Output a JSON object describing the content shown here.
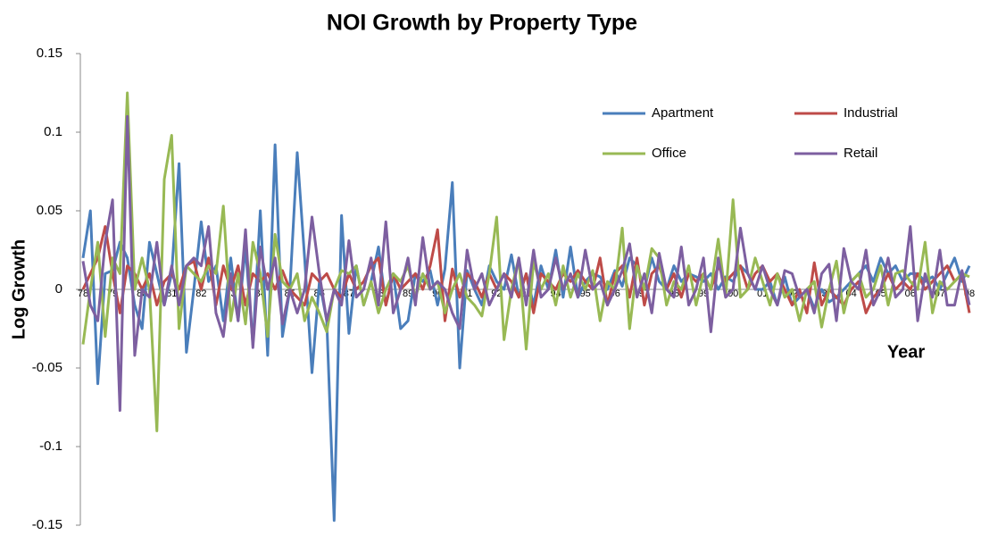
{
  "chart_data": {
    "type": "line",
    "title": "NOI Growth by Property Type",
    "ylabel": "Log Growth",
    "xlabel": "Year",
    "categories": [
      "78",
      null,
      null,
      null,
      "79",
      null,
      null,
      null,
      "80",
      null,
      null,
      null,
      "81",
      null,
      null,
      null,
      "82",
      null,
      null,
      null,
      "83",
      null,
      null,
      null,
      "84",
      null,
      null,
      null,
      "85",
      null,
      null,
      null,
      "86",
      null,
      null,
      null,
      "87",
      null,
      null,
      null,
      "88",
      null,
      null,
      null,
      "89",
      null,
      null,
      null,
      "90",
      null,
      null,
      null,
      "91",
      null,
      null,
      null,
      "92",
      null,
      null,
      null,
      "93",
      null,
      null,
      null,
      "94",
      null,
      null,
      null,
      "95",
      null,
      null,
      null,
      "96",
      null,
      null,
      null,
      "97",
      null,
      null,
      null,
      "98",
      null,
      null,
      null,
      "99",
      null,
      null,
      null,
      "00",
      null,
      null,
      null,
      "01",
      null,
      null,
      null,
      "02",
      null,
      null,
      null,
      "03",
      null,
      null,
      null,
      "04",
      null,
      null,
      null,
      "05",
      null,
      null,
      null,
      "06",
      null,
      null,
      null,
      "07",
      null,
      null,
      null,
      "08"
    ],
    "ylim": [
      -0.15,
      0.15
    ],
    "yticks": [
      0.15,
      0.1,
      0.05,
      0,
      -0.05,
      -0.1,
      -0.15
    ],
    "grid": false,
    "legend": "upper right",
    "series": [
      {
        "name": "Apartment",
        "color": "#4a7ebb",
        "values": [
          0.02,
          0.05,
          -0.06,
          0.01,
          0.012,
          0.03,
          0.02,
          -0.01,
          -0.025,
          0.03,
          0.01,
          -0.01,
          0.01,
          0.08,
          -0.04,
          0.0,
          0.043,
          0.005,
          0.015,
          -0.02,
          0.02,
          -0.02,
          0.027,
          -0.035,
          0.05,
          -0.042,
          0.092,
          -0.03,
          0.0,
          0.087,
          0.02,
          -0.053,
          0.005,
          -0.02,
          -0.147,
          0.047,
          -0.028,
          0.015,
          -0.01,
          0.005,
          0.027,
          -0.01,
          0.01,
          -0.025,
          -0.02,
          0.01,
          0.005,
          0.012,
          -0.01,
          0.013,
          0.068,
          -0.05,
          0.012,
          0.0,
          -0.01,
          0.015,
          0.005,
          0.0,
          0.022,
          -0.005,
          0.01,
          -0.01,
          0.015,
          0.0,
          0.025,
          -0.005,
          0.027,
          -0.005,
          0.005,
          0.01,
          0.008,
          0.0,
          0.012,
          0.002,
          0.02,
          0.015,
          0.0,
          0.02,
          0.005,
          0.0,
          0.015,
          0.005,
          0.01,
          0.008,
          0.005,
          0.01,
          0.0,
          0.008,
          0.005,
          0.015,
          0.01,
          0.0,
          0.0,
          0.005,
          -0.01,
          0.008,
          -0.01,
          -0.005,
          0.0,
          -0.012,
          0.0,
          -0.008,
          -0.005,
          0.0,
          0.005,
          0.01,
          0.015,
          0.005,
          0.02,
          0.01,
          0.015,
          0.005,
          0.01,
          0.01,
          0.005,
          0.008,
          0.0,
          0.01,
          0.02,
          0.005,
          0.015
        ]
      },
      {
        "name": "Industrial",
        "color": "#be4b48",
        "values": [
          0.0,
          0.01,
          0.02,
          0.04,
          0.01,
          -0.015,
          0.015,
          0.01,
          0.0,
          0.01,
          -0.01,
          0.005,
          0.01,
          0.0,
          0.015,
          0.018,
          0.0,
          0.02,
          -0.01,
          0.015,
          0.0,
          0.015,
          -0.01,
          0.01,
          0.005,
          0.01,
          0.0,
          0.012,
          0.0,
          -0.005,
          -0.01,
          0.01,
          0.005,
          0.01,
          0.0,
          -0.005,
          0.01,
          0.0,
          0.005,
          0.015,
          0.02,
          -0.01,
          0.01,
          0.0,
          0.005,
          0.01,
          0.0,
          0.015,
          0.038,
          -0.02,
          0.013,
          -0.005,
          0.01,
          0.005,
          -0.005,
          0.01,
          0.0,
          0.01,
          0.005,
          -0.005,
          0.01,
          -0.015,
          0.01,
          0.005,
          0.0,
          0.01,
          0.005,
          0.012,
          0.005,
          0.0,
          0.02,
          -0.01,
          0.01,
          0.015,
          -0.005,
          0.02,
          -0.01,
          0.01,
          0.015,
          0.0,
          0.01,
          -0.005,
          0.01,
          0.005,
          0.01,
          0.0,
          0.015,
          0.005,
          0.01,
          0.015,
          0.0,
          0.01,
          0.015,
          0.005,
          0.01,
          0.0,
          -0.01,
          0.0,
          -0.015,
          0.017,
          -0.01,
          0.0,
          -0.005,
          -0.01,
          0.0,
          0.005,
          -0.015,
          -0.005,
          0.0,
          0.01,
          0.0,
          0.005,
          0.0,
          0.01,
          0.0,
          0.005,
          0.01,
          0.015,
          0.005,
          0.01,
          -0.015
        ]
      },
      {
        "name": "Office",
        "color": "#98b954",
        "values": [
          -0.035,
          0.0,
          0.03,
          -0.03,
          0.02,
          0.01,
          0.125,
          0.0,
          0.02,
          0.0,
          -0.09,
          0.07,
          0.098,
          -0.025,
          0.015,
          0.01,
          0.005,
          0.015,
          0.01,
          0.053,
          -0.02,
          0.01,
          -0.022,
          0.03,
          0.01,
          -0.03,
          0.035,
          0.005,
          0.0,
          0.01,
          -0.02,
          -0.005,
          -0.015,
          -0.027,
          0.0,
          0.012,
          0.01,
          0.015,
          -0.01,
          0.005,
          -0.015,
          0.0,
          0.01,
          0.005,
          0.015,
          -0.005,
          0.01,
          0.0,
          0.005,
          -0.015,
          0.0,
          0.01,
          -0.005,
          -0.01,
          -0.017,
          0.01,
          0.046,
          -0.032,
          0.0,
          0.02,
          -0.038,
          0.018,
          0.0,
          0.01,
          -0.01,
          0.015,
          -0.005,
          0.01,
          0.0,
          0.012,
          -0.02,
          0.005,
          0.0,
          0.039,
          -0.025,
          0.015,
          0.0,
          0.026,
          0.02,
          -0.01,
          0.005,
          0.0,
          0.015,
          -0.01,
          0.01,
          0.0,
          0.032,
          -0.005,
          0.057,
          -0.005,
          0.0,
          0.02,
          0.005,
          -0.01,
          0.01,
          -0.005,
          0.0,
          -0.02,
          0.0,
          0.005,
          -0.024,
          0.0,
          0.018,
          -0.015,
          0.005,
          0.01,
          -0.005,
          0.0,
          0.015,
          -0.01,
          0.01,
          0.012,
          0.005,
          0.0,
          0.03,
          -0.015,
          0.005,
          0.0,
          0.005,
          0.01,
          0.008
        ]
      },
      {
        "name": "Retail",
        "color": "#7d5fa0",
        "values": [
          0.018,
          -0.01,
          -0.02,
          0.03,
          0.057,
          -0.077,
          0.11,
          -0.042,
          0.0,
          -0.005,
          0.03,
          -0.01,
          0.015,
          -0.01,
          0.015,
          0.02,
          0.015,
          0.04,
          -0.015,
          -0.03,
          0.01,
          -0.02,
          0.038,
          -0.037,
          0.027,
          0.0,
          0.02,
          -0.022,
          0.0,
          -0.015,
          0.0,
          0.046,
          0.01,
          -0.02,
          0.0,
          -0.01,
          0.031,
          -0.005,
          0.0,
          0.02,
          -0.01,
          0.043,
          -0.015,
          0.0,
          0.02,
          -0.01,
          0.033,
          0.0,
          0.005,
          0.0,
          -0.015,
          -0.025,
          0.025,
          0.0,
          0.01,
          -0.01,
          0.0,
          0.01,
          -0.005,
          0.02,
          -0.01,
          0.025,
          -0.005,
          0.0,
          0.02,
          0.0,
          0.01,
          -0.005,
          0.025,
          0.0,
          0.005,
          -0.01,
          0.0,
          0.012,
          0.029,
          -0.005,
          0.01,
          -0.015,
          0.023,
          0.0,
          -0.005,
          0.027,
          -0.01,
          0.0,
          0.02,
          -0.027,
          0.02,
          -0.005,
          0.0,
          0.039,
          0.01,
          0.0,
          0.015,
          0.0,
          -0.01,
          0.012,
          0.01,
          -0.005,
          0.0,
          -0.015,
          0.01,
          0.016,
          -0.02,
          0.026,
          0.005,
          0.0,
          0.025,
          -0.01,
          0.0,
          0.02,
          -0.005,
          0.0,
          0.04,
          -0.02,
          0.01,
          -0.005,
          0.025,
          -0.01,
          -0.01,
          0.012,
          -0.01
        ]
      }
    ]
  }
}
